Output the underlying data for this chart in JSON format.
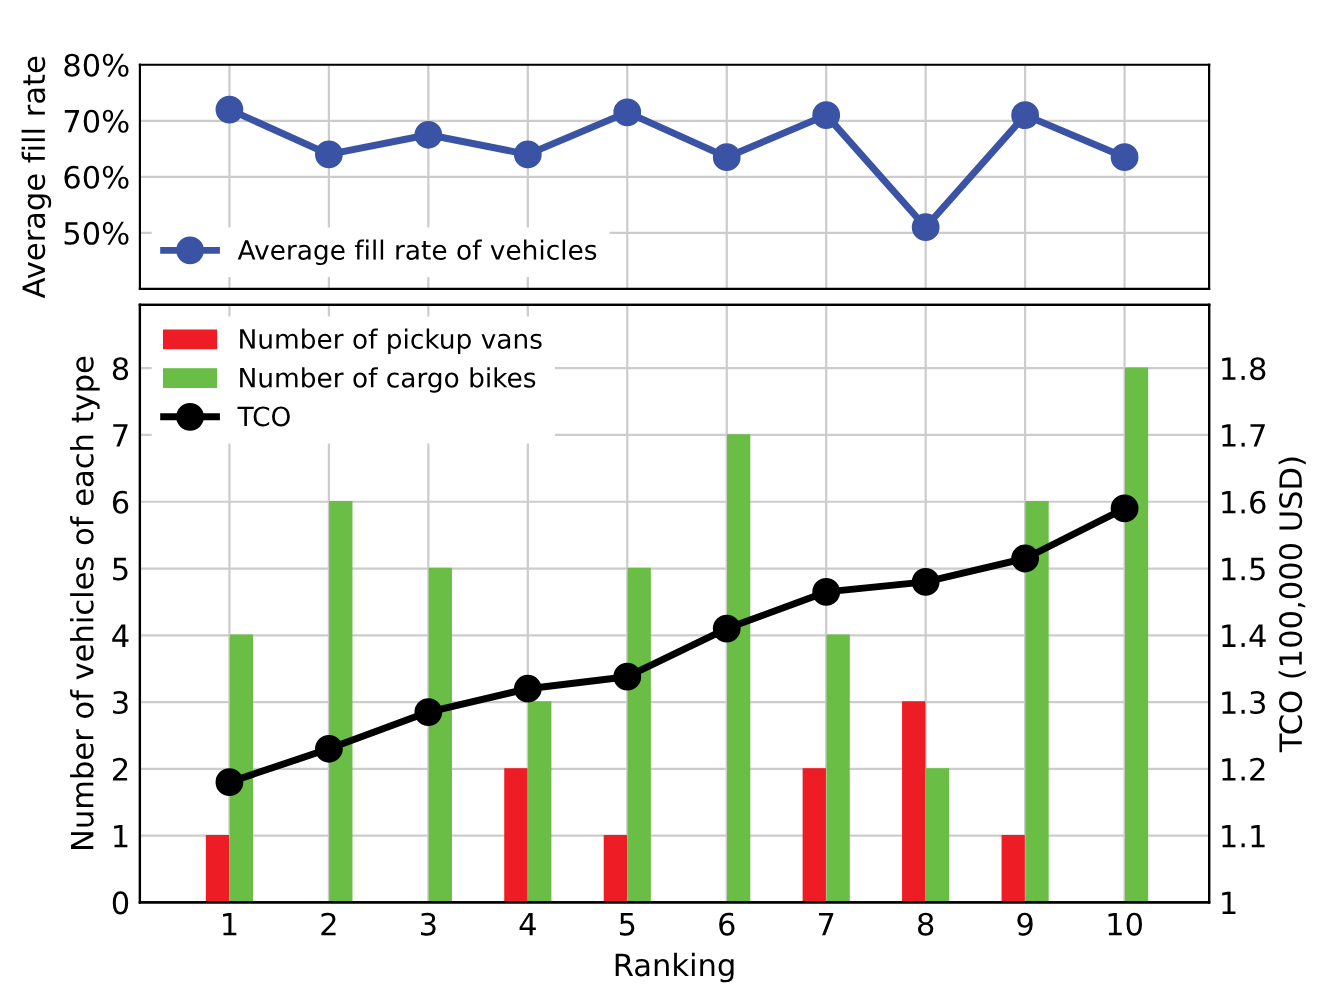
{
  "chart_data": [
    {
      "type": "line",
      "ylabel": "Average fill rate",
      "categories": [
        "1",
        "2",
        "3",
        "4",
        "5",
        "6",
        "7",
        "8",
        "9",
        "10"
      ],
      "tick_labels": "y",
      "ylim": [
        40,
        80
      ],
      "yticks": [
        {
          "value": 50,
          "label": "50%"
        },
        {
          "value": 60,
          "label": "60%"
        },
        {
          "value": 70,
          "label": "70%"
        },
        {
          "value": 80,
          "label": "80%"
        }
      ],
      "grid": true,
      "legend": "bottom left",
      "marker": "circle",
      "series": [
        {
          "name": "Average fill rate of vehicles",
          "color": "#3a53a4",
          "values": [
            72,
            64,
            67.5,
            64,
            71.5,
            63.5,
            71,
            51,
            71,
            63.5
          ]
        }
      ]
    },
    {
      "type": "bar",
      "xlabel": "Ranking",
      "ylabel": "Number of vehicles of each type",
      "y2label": "TCO (100,000 USD)",
      "categories": [
        "1",
        "2",
        "3",
        "4",
        "5",
        "6",
        "7",
        "8",
        "9",
        "10"
      ],
      "ylim": [
        0,
        8.95
      ],
      "yticks": [
        0,
        1,
        2,
        3,
        4,
        5,
        6,
        7,
        8
      ],
      "y2lim": [
        1,
        1.895
      ],
      "y2ticks": [
        1,
        1.1,
        1.2,
        1.3,
        1.4,
        1.5,
        1.6,
        1.7,
        1.8
      ],
      "grid": true,
      "legend": "top left",
      "marker": "circle",
      "series": [
        {
          "name": "Number of pickup vans",
          "color": "#ee1c25",
          "values": [
            1,
            0,
            0,
            2,
            1,
            0,
            2,
            3,
            1,
            0
          ]
        },
        {
          "name": "Number of cargo bikes",
          "color": "#6abd45",
          "values": [
            4,
            6,
            5,
            3,
            5,
            7,
            4,
            2,
            6,
            8
          ]
        },
        {
          "name": "TCO",
          "type": "line",
          "axis": "y2",
          "color": "#000000",
          "values": [
            1.18,
            1.23,
            1.285,
            1.32,
            1.338,
            1.41,
            1.465,
            1.48,
            1.515,
            1.59
          ]
        }
      ]
    }
  ]
}
